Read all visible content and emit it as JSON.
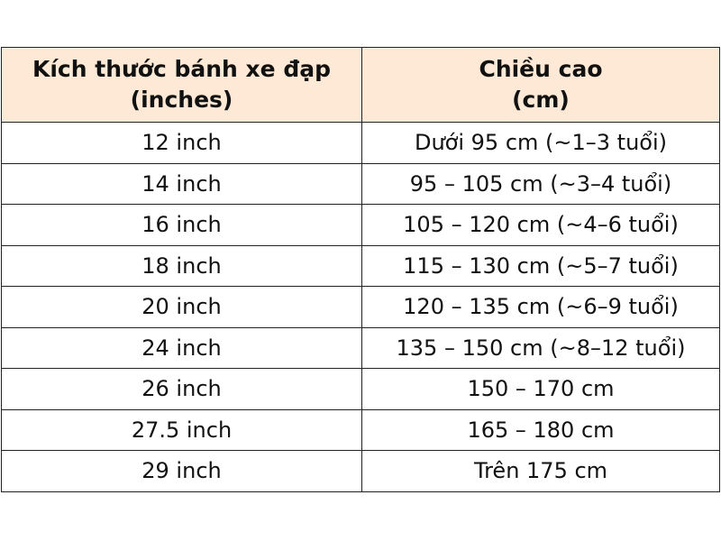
{
  "table": {
    "header": [
      [
        "Kích thước bánh xe đạp",
        "(inches)"
      ],
      [
        "Chiều cao",
        "(cm)"
      ]
    ],
    "rows": [
      [
        "12 inch",
        "Dưới 95 cm (~1–3 tuổi)"
      ],
      [
        "14 inch",
        "95 – 105 cm (~3–4 tuổi)"
      ],
      [
        "16 inch",
        "105 – 120 cm (~4–6 tuổi)"
      ],
      [
        "18 inch",
        "115 – 130 cm (~5–7 tuổi)"
      ],
      [
        "20 inch",
        "120 – 135 cm (~6–9 tuổi)"
      ],
      [
        "24 inch",
        "135 – 150 cm (~8–12 tuổi)"
      ],
      [
        "26 inch",
        "150 – 170 cm"
      ],
      [
        "27.5 inch",
        "165 – 180 cm"
      ],
      [
        "29 inch",
        "Trên 175 cm"
      ]
    ]
  }
}
